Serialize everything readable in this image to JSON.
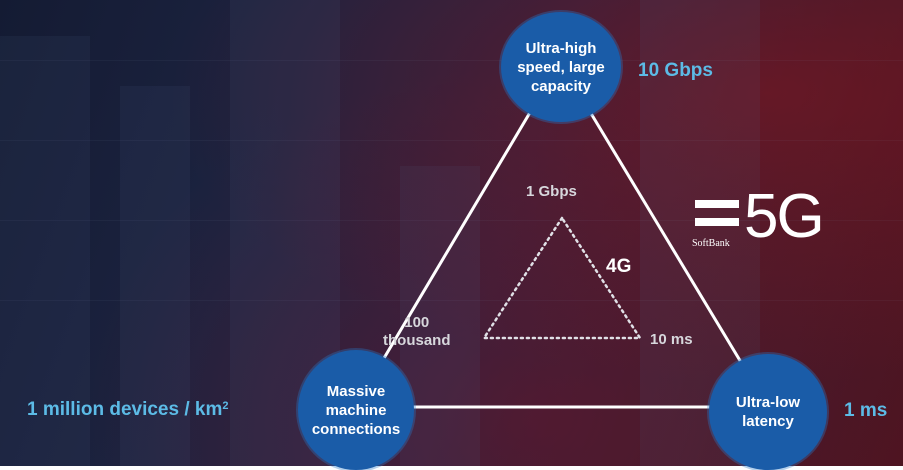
{
  "nodes": {
    "top": "Ultra-high\nspeed, large\ncapacity",
    "left": "Massive\nmachine\nconnections",
    "right": "Ultra-low\nlatency"
  },
  "metrics_5g": {
    "speed": "10 Gbps",
    "devices": "1 million devices / km",
    "devices_sup": "2",
    "latency": "1 ms"
  },
  "metrics_4g": {
    "name": "4G",
    "speed": "1 Gbps",
    "connections": "100\nthousand",
    "latency": "10 ms"
  },
  "logo": {
    "brand": "SoftBank",
    "wordmark": "5G"
  },
  "colors": {
    "node_fill": "#1a5ca8",
    "metric_text": "#5cbbe6",
    "line": "#ffffff"
  }
}
